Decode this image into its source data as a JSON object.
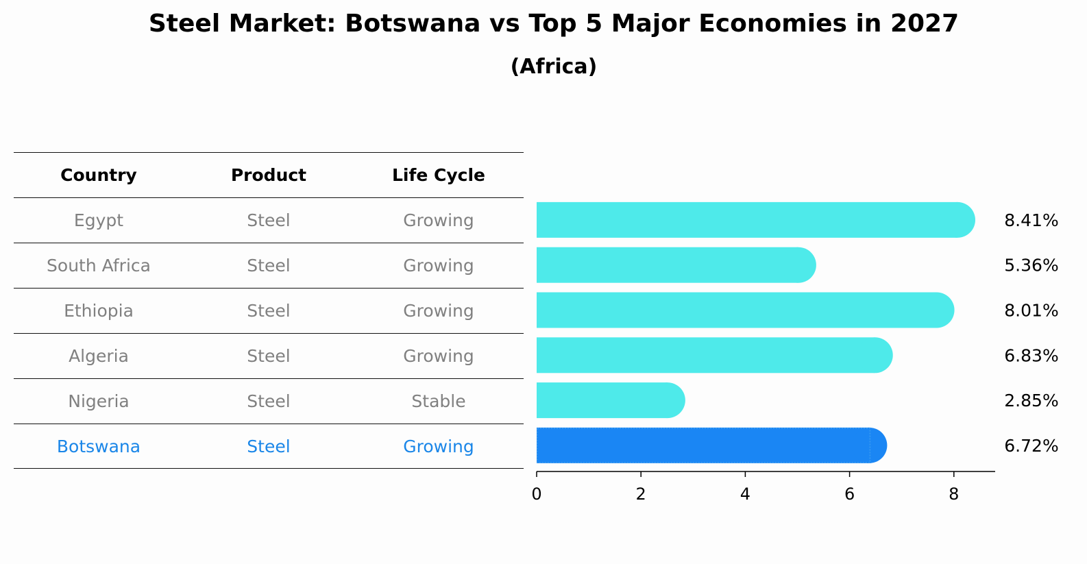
{
  "title": "Steel Market: Botswana vs Top 5 Major Economies in 2027",
  "subtitle": "(Africa)",
  "table": {
    "headers": [
      "Country",
      "Product",
      "Life Cycle"
    ],
    "rows": [
      [
        "Egypt",
        "Steel",
        "Growing"
      ],
      [
        "South Africa",
        "Steel",
        "Growing"
      ],
      [
        "Ethiopia",
        "Steel",
        "Growing"
      ],
      [
        "Algeria",
        "Steel",
        "Growing"
      ],
      [
        "Nigeria",
        "Steel",
        "Stable"
      ],
      [
        "Botswana",
        "Steel",
        "Growing"
      ]
    ],
    "highlight_row": 5
  },
  "colors": {
    "bar": "#4eeaea",
    "highlight": "#1a86f4",
    "highlight_text": "#1a86e8",
    "muted_text": "#808080"
  },
  "chart_data": {
    "type": "bar",
    "orientation": "horizontal",
    "title": "Steel Market: Botswana vs Top 5 Major Economies in 2027",
    "subtitle": "(Africa)",
    "categories": [
      "Egypt",
      "South Africa",
      "Ethiopia",
      "Algeria",
      "Nigeria",
      "Botswana"
    ],
    "values": [
      8.41,
      5.36,
      8.01,
      6.83,
      2.85,
      6.72
    ],
    "value_labels": [
      "8.41%",
      "5.36%",
      "8.01%",
      "6.83%",
      "2.85%",
      "6.72%"
    ],
    "highlight": "Botswana",
    "xlim": [
      0,
      8.8
    ],
    "xticks": [
      0,
      2,
      4,
      6,
      8
    ],
    "xlabel": "",
    "ylabel": ""
  }
}
